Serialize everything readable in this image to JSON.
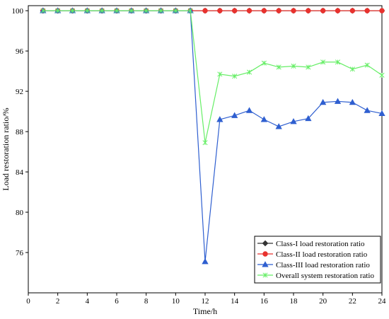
{
  "chart_data": {
    "type": "line",
    "xlabel": "Time/h",
    "ylabel": "Load restoration ratio/%",
    "xlim": [
      0,
      24
    ],
    "ylim": [
      72,
      100.5
    ],
    "x_ticks": [
      0,
      2,
      4,
      6,
      8,
      10,
      12,
      14,
      16,
      18,
      20,
      22,
      24
    ],
    "y_ticks": [
      76,
      80,
      84,
      88,
      92,
      96,
      100
    ],
    "grid": false,
    "legend_position": "bottom-right",
    "x": [
      1,
      2,
      3,
      4,
      5,
      6,
      7,
      8,
      9,
      10,
      11,
      12,
      13,
      14,
      15,
      16,
      17,
      18,
      19,
      20,
      21,
      22,
      23,
      24
    ],
    "series": [
      {
        "name": "Class-I load restoration ratio",
        "color": "#333333",
        "marker": "diamond",
        "values": [
          100,
          100,
          100,
          100,
          100,
          100,
          100,
          100,
          100,
          100,
          100,
          100,
          100,
          100,
          100,
          100,
          100,
          100,
          100,
          100,
          100,
          100,
          100,
          100
        ]
      },
      {
        "name": "Class-II load restoration ratio",
        "color": "#e8322e",
        "marker": "circle",
        "values": [
          100,
          100,
          100,
          100,
          100,
          100,
          100,
          100,
          100,
          100,
          100,
          100,
          100,
          100,
          100,
          100,
          100,
          100,
          100,
          100,
          100,
          100,
          100,
          100
        ]
      },
      {
        "name": "Class-III  load restoration ratio",
        "color": "#2f5fd0",
        "marker": "triangle",
        "values": [
          100,
          100,
          100,
          100,
          100,
          100,
          100,
          100,
          100,
          100,
          100,
          75.1,
          89.2,
          89.6,
          90.1,
          89.2,
          88.5,
          89.0,
          89.3,
          90.9,
          91.0,
          90.9,
          90.1,
          89.8
        ]
      },
      {
        "name": "Overall system restoration ratio",
        "color": "#66ee66",
        "marker": "star",
        "values": [
          100,
          100,
          100,
          100,
          100,
          100,
          100,
          100,
          100,
          100,
          100,
          86.9,
          93.7,
          93.5,
          93.9,
          94.8,
          94.4,
          94.5,
          94.4,
          94.9,
          94.9,
          94.2,
          94.6,
          93.6
        ]
      }
    ]
  }
}
